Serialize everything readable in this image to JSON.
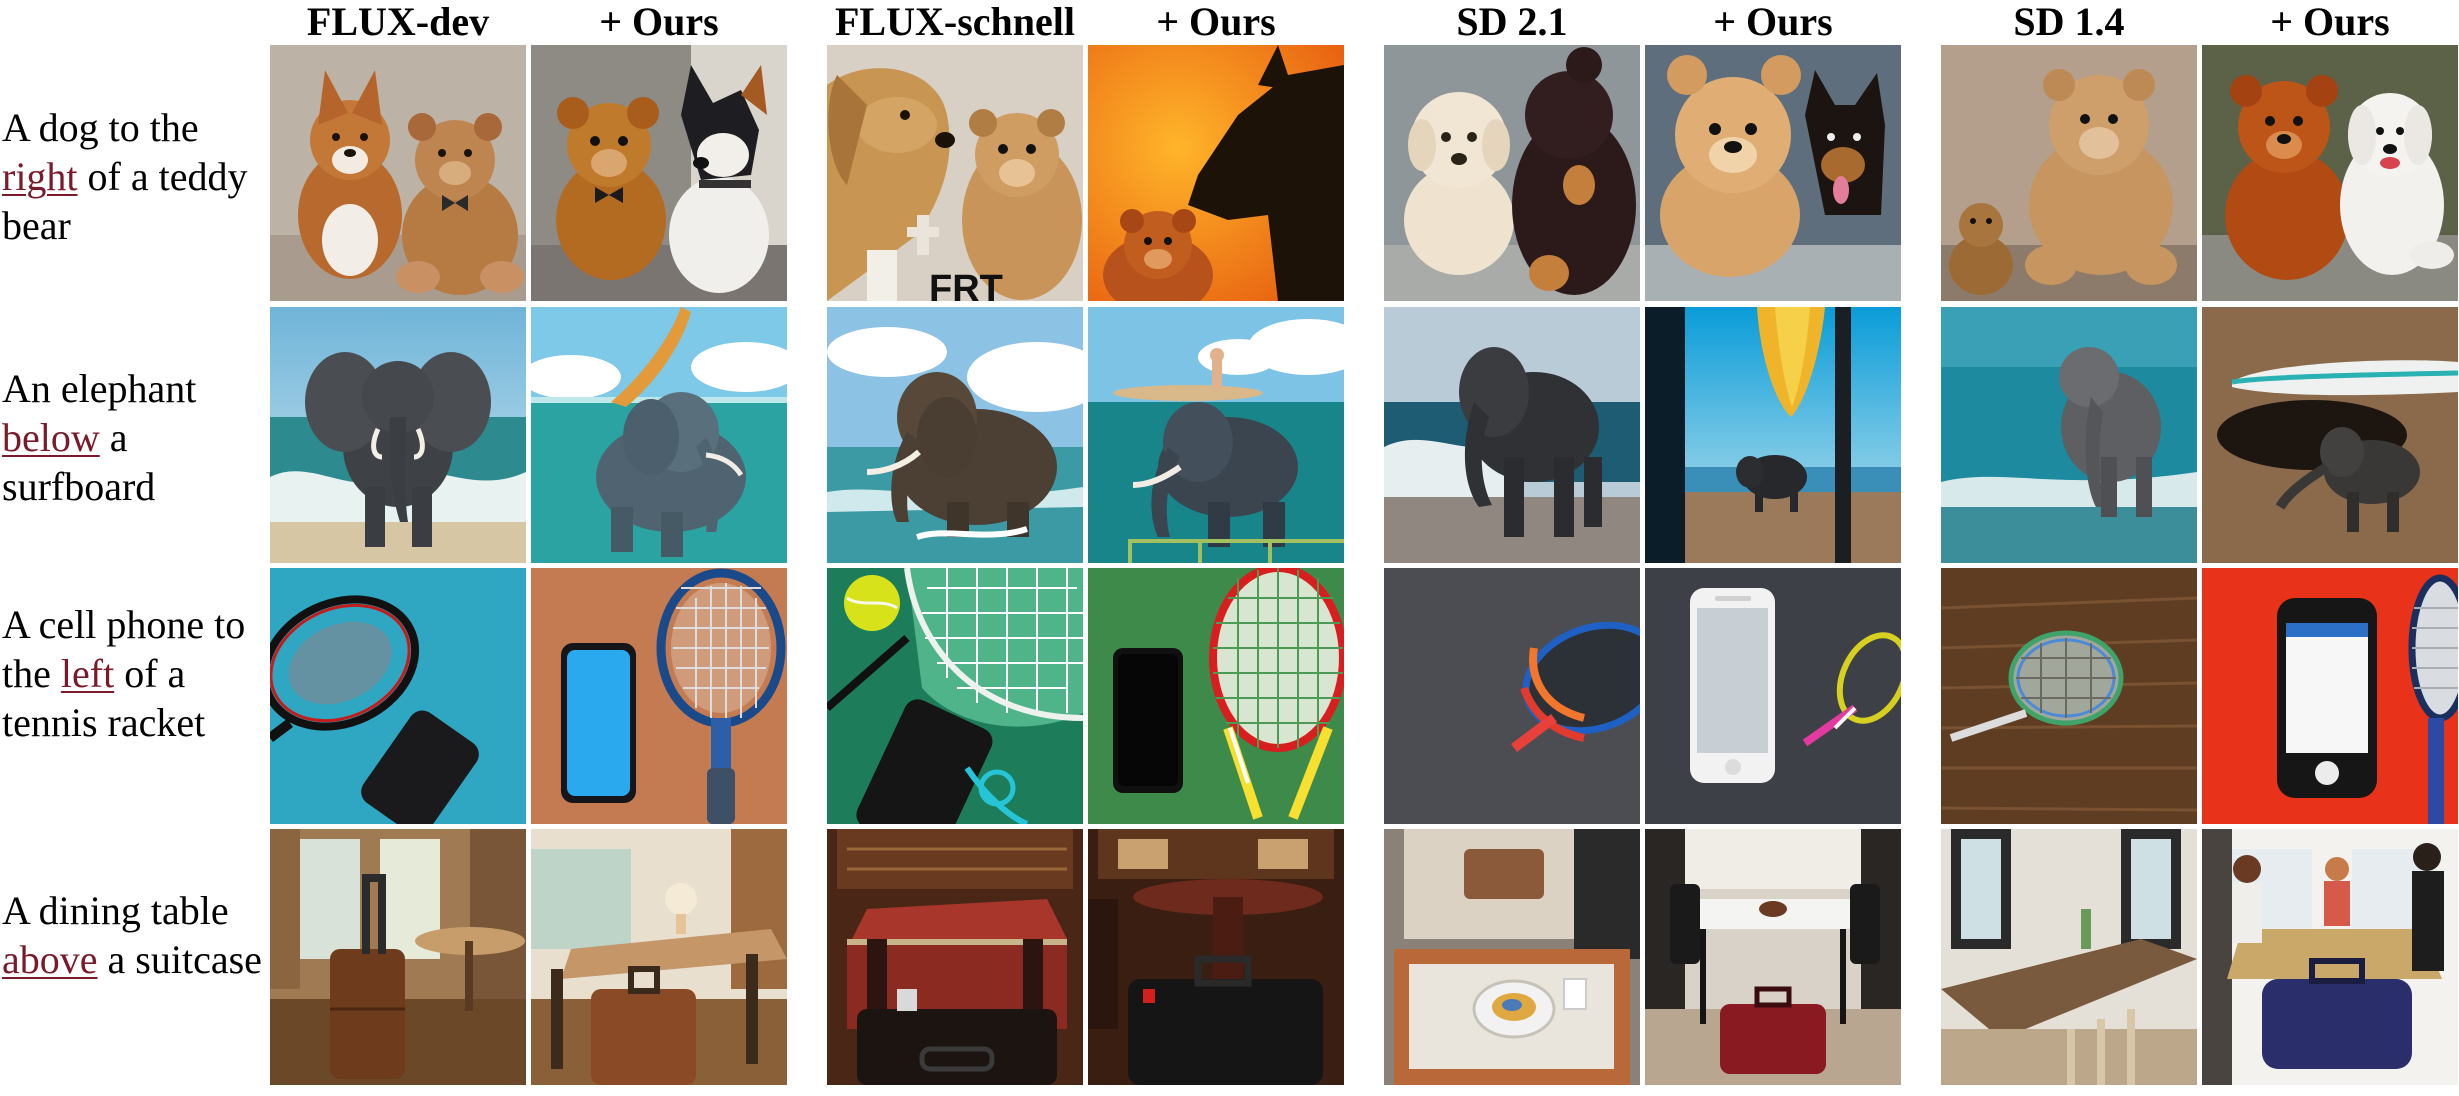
{
  "column_headers": [
    "FLUX-dev",
    "+ Ours",
    "FLUX-schnell",
    "+ Ours",
    "SD 2.1",
    "+ Ours",
    "SD 1.4",
    "+ Ours"
  ],
  "prompts": [
    {
      "before": "A dog to the",
      "relation": "right",
      "after": "of a teddy bear"
    },
    {
      "before": "An elephant",
      "relation": "below",
      "after": "a surfboard"
    },
    {
      "before": "A cell phone to the",
      "relation": "left",
      "after": "of a tennis racket"
    },
    {
      "before": "A dining table",
      "relation": "above",
      "after": "a suitcase"
    }
  ],
  "image_text": {
    "flux_schnell_dog_sign": "FRT"
  }
}
